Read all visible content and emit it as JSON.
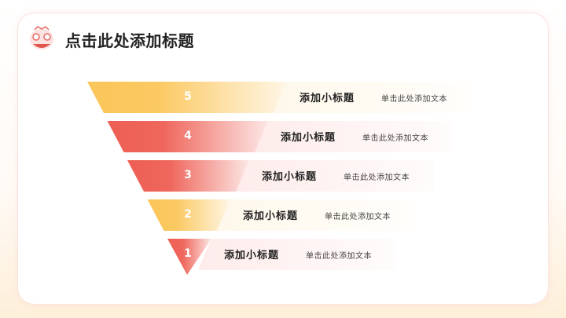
{
  "title": "点击此处添加标题",
  "logo": "lion-dance-head-icon",
  "colors": {
    "yellow": "#fbc65a",
    "red": "#ee5f54"
  },
  "levels": [
    {
      "number": "5",
      "subtitle": "添加小标题",
      "text": "单击此处添加文本",
      "color": "yellow"
    },
    {
      "number": "4",
      "subtitle": "添加小标题",
      "text": "单击此处添加文本",
      "color": "red"
    },
    {
      "number": "3",
      "subtitle": "添加小标题",
      "text": "单击此处添加文本",
      "color": "red"
    },
    {
      "number": "2",
      "subtitle": "添加小标题",
      "text": "单击此处添加文本",
      "color": "yellow"
    },
    {
      "number": "1",
      "subtitle": "添加小标题",
      "text": "单击此处添加文本",
      "color": "red"
    }
  ]
}
